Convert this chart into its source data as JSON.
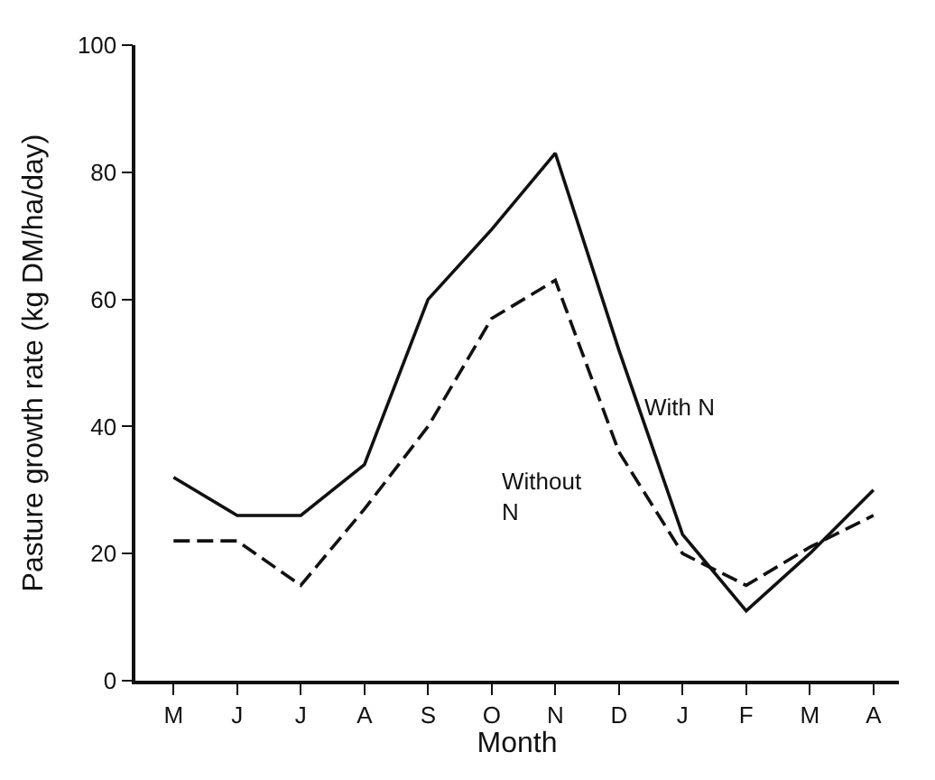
{
  "chart_data": {
    "type": "line",
    "xlabel": "Month",
    "ylabel": "Pasture growth rate (kg DM/ha/day)",
    "categories": [
      "M",
      "J",
      "J",
      "A",
      "S",
      "O",
      "N",
      "D",
      "J",
      "F",
      "M",
      "A"
    ],
    "series": [
      {
        "name": "With N",
        "color": "#111111",
        "line_style": "solid",
        "values": [
          32,
          26,
          26,
          34,
          60,
          71,
          83,
          52,
          23,
          11,
          20,
          30
        ]
      },
      {
        "name": "Without N",
        "color": "#111111",
        "line_style": "dashed",
        "values": [
          22,
          22,
          15,
          27,
          40,
          57,
          63,
          36,
          20,
          15,
          21,
          26
        ]
      }
    ],
    "ylim": [
      0,
      100
    ],
    "yticks": [
      0,
      20,
      40,
      60,
      80,
      100
    ],
    "legend": false,
    "marker": "none"
  }
}
